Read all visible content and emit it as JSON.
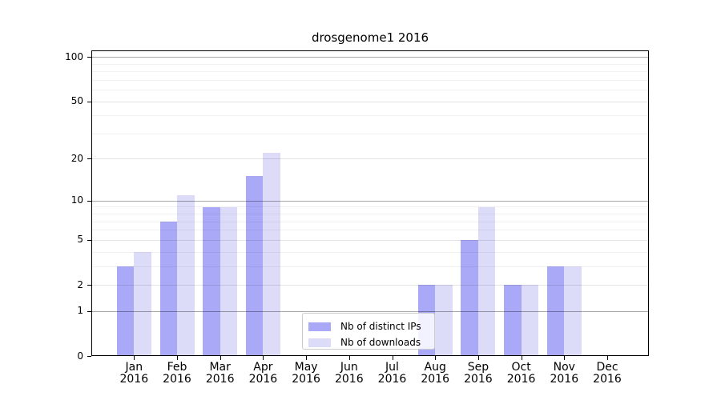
{
  "figure": {
    "title": "drosgenome1 2016"
  },
  "chart_data": {
    "type": "bar",
    "title": "drosgenome1 2016",
    "x_categories": [
      "Jan 2016",
      "Feb 2016",
      "Mar 2016",
      "Apr 2016",
      "May 2016",
      "Jun 2016",
      "Jul 2016",
      "Aug 2016",
      "Sep 2016",
      "Oct 2016",
      "Nov 2016",
      "Dec 2016"
    ],
    "series": [
      {
        "name": "Nb of distinct IPs",
        "color": "#a9a9f7",
        "values": [
          3,
          7,
          9,
          15,
          0,
          0,
          0,
          2,
          5,
          2,
          3,
          0
        ]
      },
      {
        "name": "Nb of downloads",
        "color": "#dcdcf9",
        "values": [
          4,
          11,
          9,
          22,
          0,
          0,
          0,
          2,
          9,
          2,
          3,
          0
        ]
      }
    ],
    "y_axis": {
      "scale": "log1p",
      "tick_values": [
        0,
        1,
        2,
        5,
        10,
        20,
        50,
        100
      ],
      "tick_labels": [
        "0",
        "1",
        "2",
        "5",
        "10",
        "20",
        "50",
        "100"
      ],
      "decade_gridlines": [
        1,
        10,
        100
      ],
      "minor_gridlines": [
        3,
        4,
        6,
        7,
        8,
        9,
        30,
        40,
        60,
        70,
        80,
        90
      ],
      "ylim": [
        0,
        111
      ]
    },
    "xlabel": "",
    "ylabel": "",
    "grid": true,
    "legend_position": "lower center",
    "background_color": "#ffffff",
    "text_color": "#000000"
  }
}
